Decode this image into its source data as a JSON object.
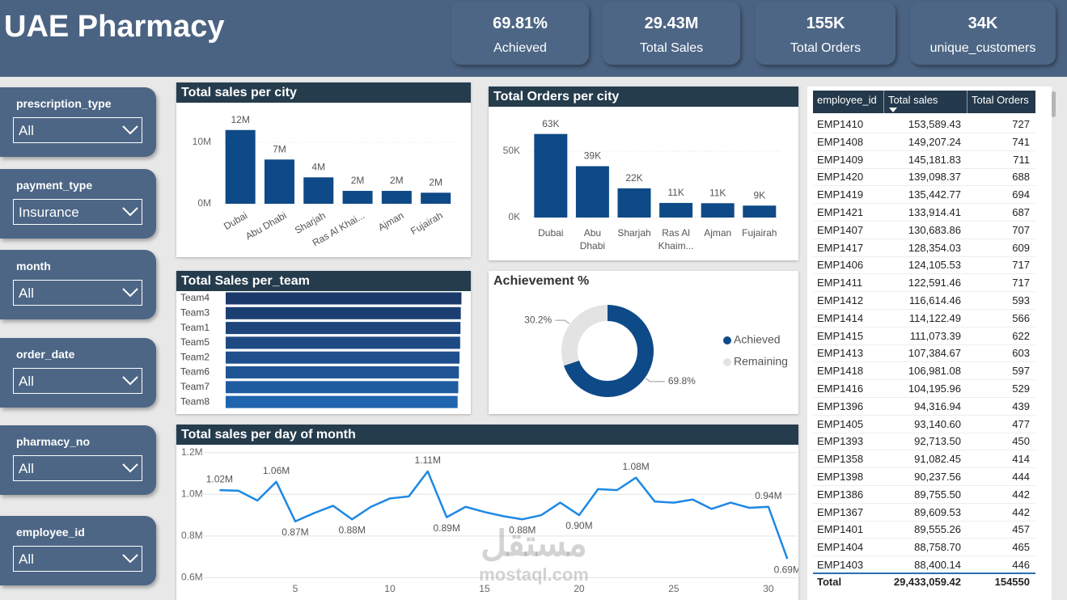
{
  "header": {
    "title": "UAE Pharmacy"
  },
  "kpis": [
    {
      "value": "69.81%",
      "label": "Achieved"
    },
    {
      "value": "29.43M",
      "label": "Total Sales"
    },
    {
      "value": "155K",
      "label": "Total Orders"
    },
    {
      "value": "34K",
      "label": "unique_customers"
    }
  ],
  "filters": [
    {
      "label": "prescription_type",
      "value": "All"
    },
    {
      "label": "payment_type",
      "value": "Insurance"
    },
    {
      "label": "month",
      "value": "All"
    },
    {
      "label": "order_date",
      "value": "All"
    },
    {
      "label": "pharmacy_no",
      "value": "All"
    },
    {
      "label": "employee_id",
      "value": "All"
    }
  ],
  "chart_data": [
    {
      "type": "bar",
      "title": "Total sales per city",
      "categories": [
        "Dubai",
        "Abu Dhabi",
        "Sharjah",
        "Ras Al Khai...",
        "Ajman",
        "Fujairah"
      ],
      "values": [
        12000000,
        7200000,
        4300000,
        2100000,
        2100000,
        1800000
      ],
      "value_labels": [
        "12M",
        "7M",
        "4M",
        "2M",
        "2M",
        "2M"
      ],
      "color": "#0e4a87",
      "ylim": [
        0,
        15000000
      ],
      "yticks": [
        {
          "value": 0,
          "label": "0M"
        },
        {
          "value": 10000000,
          "label": "10M"
        }
      ],
      "grid": true
    },
    {
      "type": "bar",
      "title": "Total Orders per city",
      "categories": [
        "Dubai",
        "Abu Dhabi",
        "Sharjah",
        "Ras Al Khaim...",
        "Ajman",
        "Fujairah"
      ],
      "values": [
        63000,
        38700,
        22000,
        11000,
        10800,
        9000
      ],
      "value_labels": [
        "63K",
        "39K",
        "22K",
        "11K",
        "11K",
        "9K"
      ],
      "color": "#0e4a87",
      "ylim": [
        0,
        75000
      ],
      "yticks": [
        {
          "value": 0,
          "label": "0K"
        },
        {
          "value": 50000,
          "label": "50K"
        }
      ],
      "grid": true
    },
    {
      "type": "hbar",
      "title": "Total Sales per_team",
      "categories": [
        "Team4",
        "Team3",
        "Team1",
        "Team5",
        "Team2",
        "Team6",
        "Team7",
        "Team8"
      ],
      "values": [
        3700000,
        3690000,
        3685000,
        3680000,
        3670000,
        3660000,
        3650000,
        3640000
      ],
      "colors": [
        "#1b3a6b",
        "#1c3f73",
        "#1d447b",
        "#1e4a84",
        "#1f4f8c",
        "#1f5595",
        "#1f5b9f",
        "#1e64ae"
      ],
      "xlim": [
        0,
        3720000
      ]
    },
    {
      "type": "donut",
      "title": "Achievement %",
      "categories": [
        "Achieved",
        "Remaining"
      ],
      "values": [
        69.8,
        30.2
      ],
      "value_labels": [
        "69.8%",
        "30.2%"
      ],
      "colors": [
        "#0e4a87",
        "#e3e3e3"
      ],
      "legend": "right"
    },
    {
      "type": "line",
      "title": "Total sales per day of month",
      "x": [
        1,
        2,
        3,
        4,
        5,
        6,
        7,
        8,
        9,
        10,
        11,
        12,
        13,
        14,
        15,
        16,
        17,
        18,
        19,
        20,
        21,
        22,
        23,
        24,
        25,
        26,
        27,
        28,
        29,
        30,
        31
      ],
      "values": [
        1020000,
        1017000,
        970000,
        1060000,
        870000,
        910000,
        945000,
        880000,
        940000,
        980000,
        990000,
        1110000,
        890000,
        940000,
        915000,
        895000,
        880000,
        900000,
        960000,
        900000,
        1025000,
        1020000,
        1080000,
        965000,
        960000,
        975000,
        930000,
        960000,
        935000,
        940000,
        690000
      ],
      "value_labels": [
        "1.02M",
        null,
        null,
        "1.06M",
        "0.87M",
        null,
        null,
        "0.88M",
        null,
        null,
        null,
        "1.11M",
        "0.89M",
        null,
        null,
        null,
        "0.88M",
        null,
        null,
        "0.90M",
        null,
        null,
        "1.08M",
        null,
        null,
        null,
        null,
        null,
        null,
        "0.94M",
        "0.69M"
      ],
      "color": "#1e88e5",
      "xlim": [
        0,
        31.5
      ],
      "xticks": [
        5,
        10,
        15,
        20,
        25,
        30
      ],
      "ylim": [
        520000,
        1230000
      ],
      "yticks": [
        {
          "value": 600000,
          "label": "0.6M"
        },
        {
          "value": 800000,
          "label": "0.8M"
        },
        {
          "value": 1000000,
          "label": "1.0M"
        },
        {
          "value": 1200000,
          "label": "1.2M"
        }
      ],
      "grid": true
    }
  ],
  "table": {
    "columns": [
      "employee_id",
      "Total sales",
      "Total Orders"
    ],
    "rows": [
      [
        "EMP1410",
        "153,589.43",
        "727"
      ],
      [
        "EMP1408",
        "149,207.24",
        "741"
      ],
      [
        "EMP1409",
        "145,181.83",
        "711"
      ],
      [
        "EMP1420",
        "139,098.37",
        "688"
      ],
      [
        "EMP1419",
        "135,442.77",
        "694"
      ],
      [
        "EMP1421",
        "133,914.41",
        "687"
      ],
      [
        "EMP1407",
        "130,683.86",
        "707"
      ],
      [
        "EMP1417",
        "128,354.03",
        "609"
      ],
      [
        "EMP1406",
        "124,105.53",
        "717"
      ],
      [
        "EMP1411",
        "122,591.46",
        "717"
      ],
      [
        "EMP1412",
        "116,614.46",
        "593"
      ],
      [
        "EMP1414",
        "114,122.49",
        "566"
      ],
      [
        "EMP1415",
        "111,073.39",
        "622"
      ],
      [
        "EMP1413",
        "107,384.67",
        "603"
      ],
      [
        "EMP1418",
        "106,981.08",
        "597"
      ],
      [
        "EMP1416",
        "104,195.96",
        "529"
      ],
      [
        "EMP1396",
        "94,316.94",
        "439"
      ],
      [
        "EMP1405",
        "93,140.60",
        "477"
      ],
      [
        "EMP1393",
        "92,713.50",
        "450"
      ],
      [
        "EMP1358",
        "91,082.45",
        "414"
      ],
      [
        "EMP1398",
        "90,237.56",
        "444"
      ],
      [
        "EMP1386",
        "89,755.50",
        "442"
      ],
      [
        "EMP1367",
        "89,609.53",
        "442"
      ],
      [
        "EMP1401",
        "89,555.26",
        "457"
      ],
      [
        "EMP1404",
        "88,758.70",
        "465"
      ],
      [
        "EMP1403",
        "88,400.14",
        "446"
      ]
    ],
    "total": [
      "Total",
      "29,433,059.42",
      "154550"
    ]
  },
  "watermark": [
    "مستقل",
    "mostaql.com"
  ]
}
